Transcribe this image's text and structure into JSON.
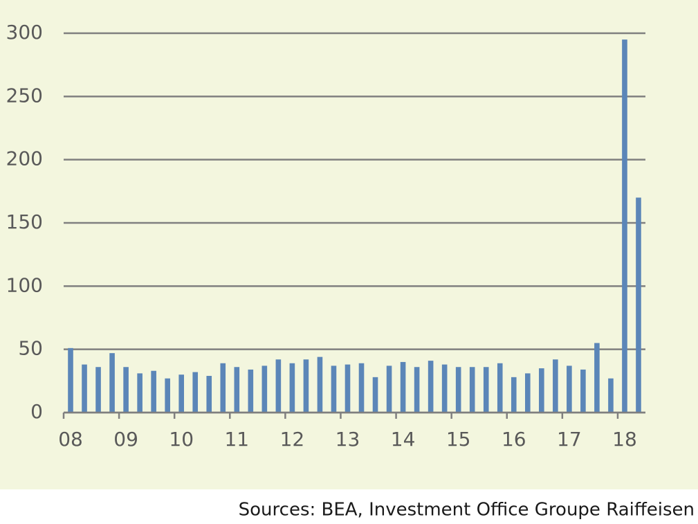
{
  "chart_data": {
    "type": "bar",
    "categories": [
      "08",
      null,
      null,
      null,
      "09",
      null,
      null,
      null,
      "10",
      null,
      null,
      null,
      "11",
      null,
      null,
      null,
      "12",
      null,
      null,
      null,
      "13",
      null,
      null,
      null,
      "14",
      null,
      null,
      null,
      "15",
      null,
      null,
      null,
      "16",
      null,
      null,
      null,
      "17",
      null,
      null,
      null,
      "18",
      null
    ],
    "values": [
      51,
      38,
      36,
      47,
      36,
      31,
      33,
      27,
      30,
      32,
      29,
      39,
      36,
      34,
      37,
      42,
      39,
      42,
      44,
      37,
      38,
      39,
      28,
      37,
      40,
      36,
      41,
      38,
      36,
      36,
      36,
      39,
      28,
      31,
      35,
      42,
      37,
      34,
      55,
      27,
      295,
      170
    ],
    "color": "#5b86b8",
    "ylim": [
      0,
      300
    ],
    "yticks": [
      0,
      50,
      100,
      150,
      200,
      250,
      300
    ],
    "grid": true,
    "source": "Sources: BEA, Investment Office Groupe Raiffeisen"
  }
}
